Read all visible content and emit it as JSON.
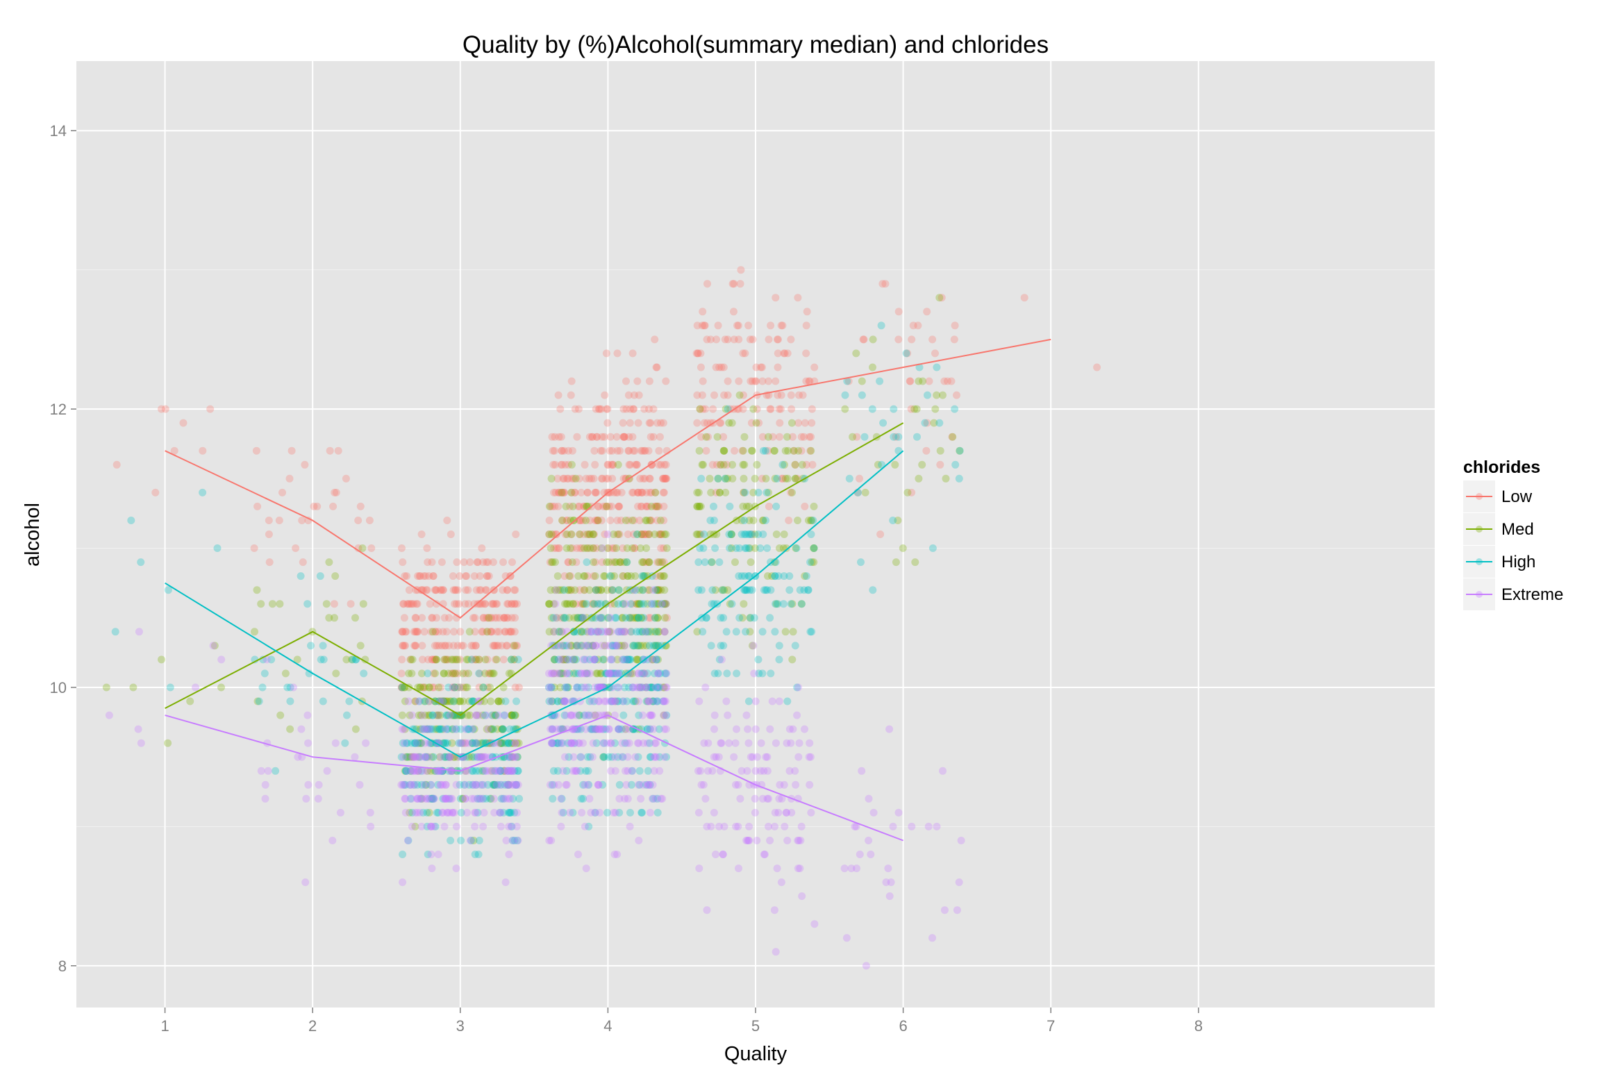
{
  "chart_data": {
    "type": "scatter",
    "title": "Quality by (%)Alcohol(summary median) and chlorides",
    "xlabel": "Quality",
    "ylabel": "alcohol",
    "xlim": [
      0.4,
      9.6
    ],
    "ylim": [
      7.7,
      14.5
    ],
    "x_ticks": [
      1,
      2,
      3,
      4,
      5,
      6,
      7,
      8
    ],
    "y_ticks": [
      8,
      10,
      12,
      14
    ],
    "grid": true,
    "legend": {
      "title": "chlorides",
      "placement": "right"
    },
    "series": [
      {
        "name": "Low",
        "color": "#F8766D",
        "median_x": [
          1,
          2,
          3,
          4,
          5,
          6,
          7
        ],
        "median_y": [
          11.7,
          11.2,
          10.5,
          11.4,
          12.1,
          12.3,
          12.5
        ]
      },
      {
        "name": "Med",
        "color": "#7CAE00",
        "median_x": [
          1,
          2,
          3,
          4,
          5,
          6
        ],
        "median_y": [
          9.85,
          10.4,
          9.8,
          10.6,
          11.3,
          11.9
        ]
      },
      {
        "name": "High",
        "color": "#00BFC4",
        "median_x": [
          1,
          2,
          3,
          4,
          5,
          6
        ],
        "median_y": [
          10.75,
          10.1,
          9.5,
          10.0,
          10.8,
          11.7
        ]
      },
      {
        "name": "Extreme",
        "color": "#C77CFF",
        "median_x": [
          1,
          2,
          3,
          4,
          5,
          6
        ],
        "median_y": [
          9.8,
          9.5,
          9.4,
          9.8,
          9.3,
          8.9
        ]
      }
    ],
    "point_alpha": 0.3
  }
}
